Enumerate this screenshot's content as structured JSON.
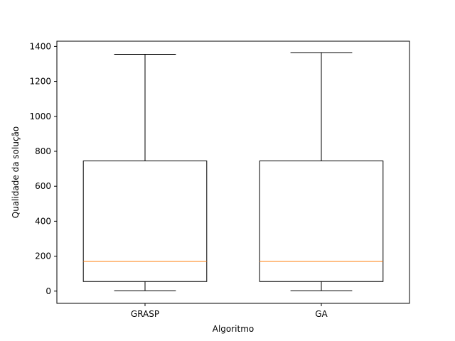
{
  "chart_data": {
    "type": "boxplot",
    "title": "",
    "xlabel": "Algoritmo",
    "ylabel": "Qualidade da solução",
    "categories": [
      "GRASP",
      "GA"
    ],
    "boxes": [
      {
        "name": "GRASP",
        "whisker_low": 2,
        "q1": 55,
        "median": 170,
        "q3": 745,
        "whisker_high": 1355
      },
      {
        "name": "GA",
        "whisker_low": 2,
        "q1": 55,
        "median": 170,
        "q3": 745,
        "whisker_high": 1365
      }
    ],
    "ylim": [
      -70,
      1430
    ],
    "yticks": [
      0,
      200,
      400,
      600,
      800,
      1000,
      1200,
      1400
    ],
    "grid": false,
    "colors": {
      "box": "#000000",
      "median": "#ff7f0e"
    }
  }
}
